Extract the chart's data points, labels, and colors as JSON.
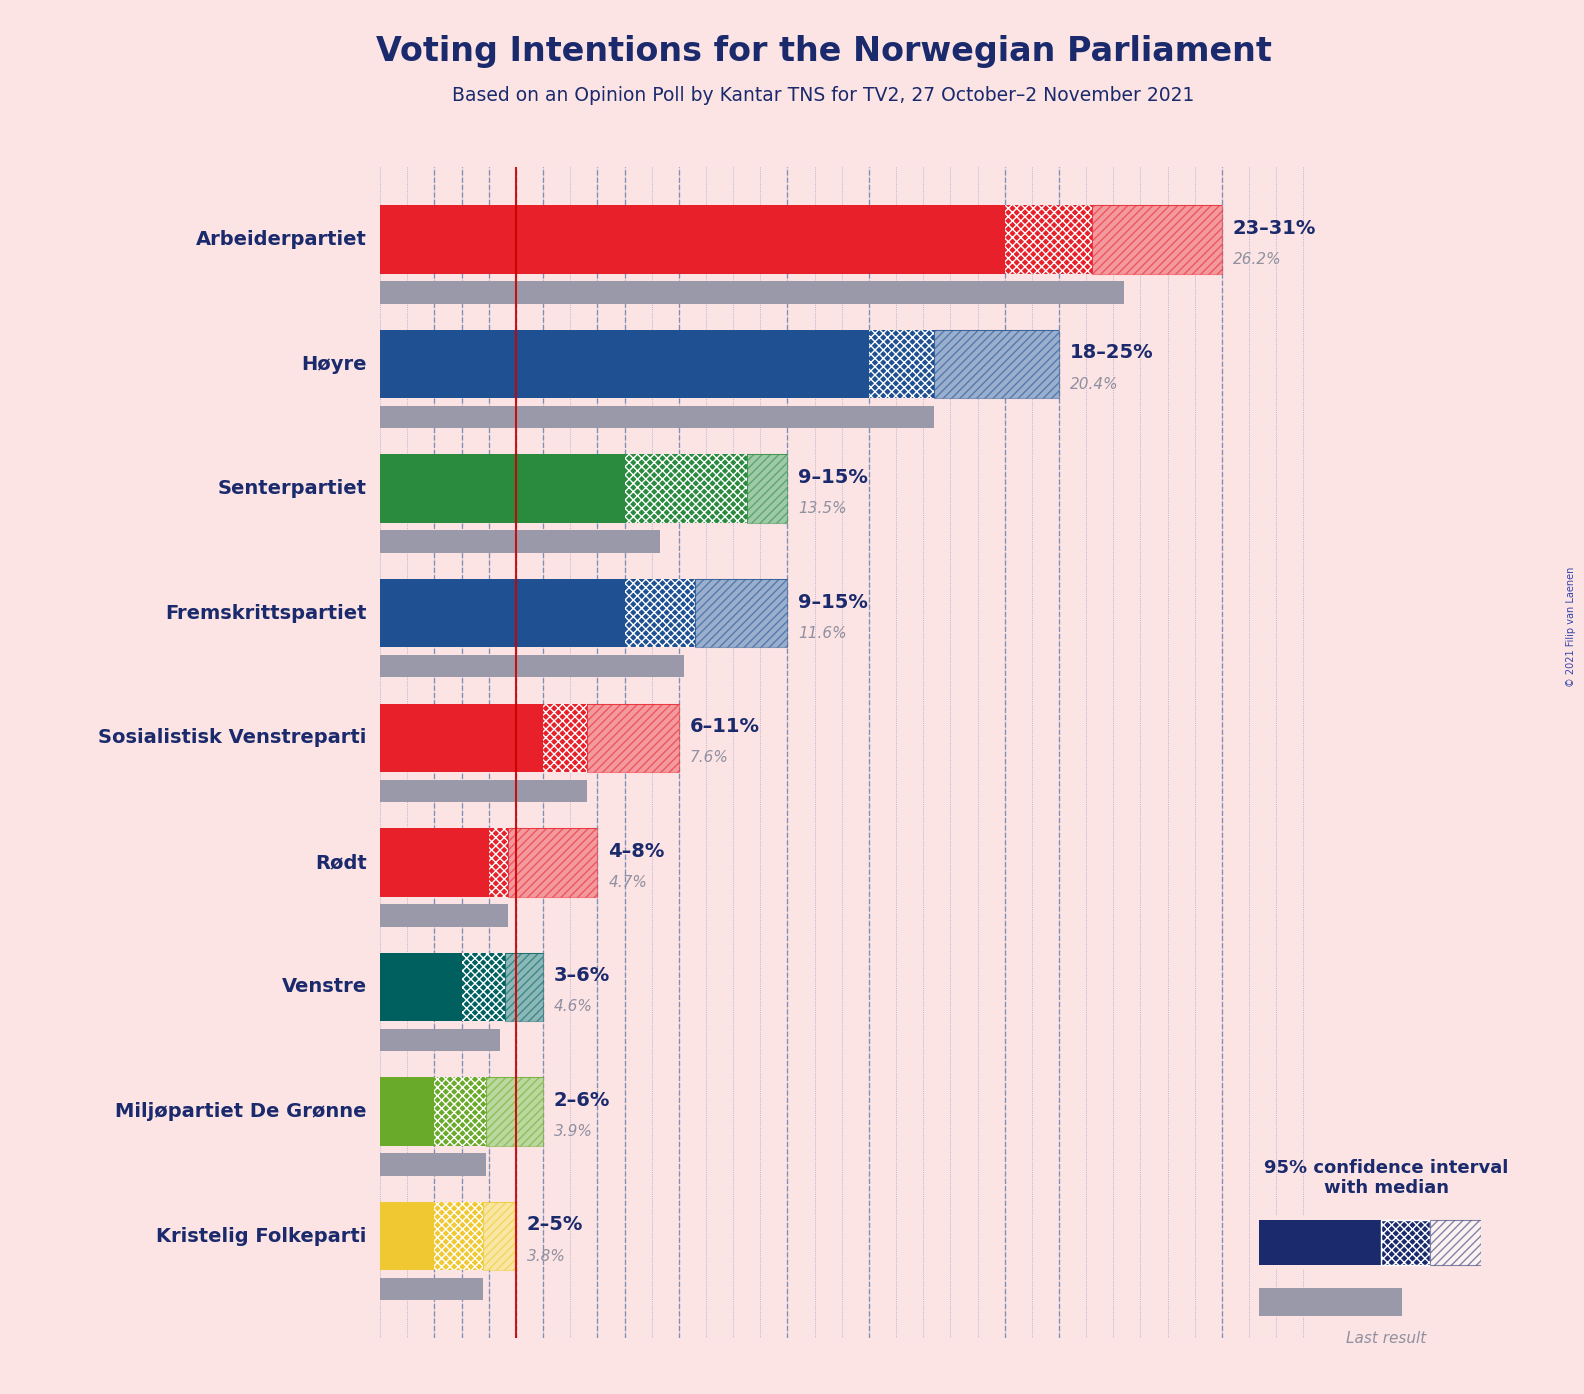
{
  "title": "Voting Intentions for the Norwegian Parliament",
  "subtitle": "Based on an Opinion Poll by Kantar TNS for TV2, 27 October–2 November 2021",
  "copyright": "© 2021 Filip van Laenen",
  "background_color": "#fce4e4",
  "parties": [
    {
      "name": "Arbeiderpartiet",
      "ci_low": 23,
      "ci_high": 31,
      "median": 26.2,
      "last_result": 27.4,
      "color": "#e8202a",
      "label": "23–31%",
      "median_label": "26.2%"
    },
    {
      "name": "Høyre",
      "ci_low": 18,
      "ci_high": 25,
      "median": 20.4,
      "last_result": 20.4,
      "color": "#1f5092",
      "label": "18–25%",
      "median_label": "20.4%"
    },
    {
      "name": "Senterpartiet",
      "ci_low": 9,
      "ci_high": 15,
      "median": 13.5,
      "last_result": 10.3,
      "color": "#2a8a3e",
      "label": "9–15%",
      "median_label": "13.5%"
    },
    {
      "name": "Fremskrittspartiet",
      "ci_low": 9,
      "ci_high": 15,
      "median": 11.6,
      "last_result": 11.2,
      "color": "#1f5092",
      "label": "9–15%",
      "median_label": "11.6%"
    },
    {
      "name": "Sosialistisk Venstreparti",
      "ci_low": 6,
      "ci_high": 11,
      "median": 7.6,
      "last_result": 7.6,
      "color": "#e8202a",
      "label": "6–11%",
      "median_label": "7.6%"
    },
    {
      "name": "Rødt",
      "ci_low": 4,
      "ci_high": 8,
      "median": 4.7,
      "last_result": 4.7,
      "color": "#e8202a",
      "label": "4–8%",
      "median_label": "4.7%"
    },
    {
      "name": "Venstre",
      "ci_low": 3,
      "ci_high": 6,
      "median": 4.6,
      "last_result": 4.4,
      "color": "#006060",
      "label": "3–6%",
      "median_label": "4.6%"
    },
    {
      "name": "Miljøpartiet De Grønne",
      "ci_low": 2,
      "ci_high": 6,
      "median": 3.9,
      "last_result": 3.9,
      "color": "#6aaa2a",
      "label": "2–6%",
      "median_label": "3.9%"
    },
    {
      "name": "Kristelig Folkeparti",
      "ci_low": 2,
      "ci_high": 5,
      "median": 3.8,
      "last_result": 3.8,
      "color": "#f0c832",
      "label": "2–5%",
      "median_label": "3.8%"
    }
  ],
  "axis_max": 35,
  "legend_text1": "95% confidence interval\nwith median",
  "legend_text3": "Last result",
  "dark_navy": "#1a2a6c",
  "gray_color": "#9090a0",
  "light_gray": "#9999aa"
}
